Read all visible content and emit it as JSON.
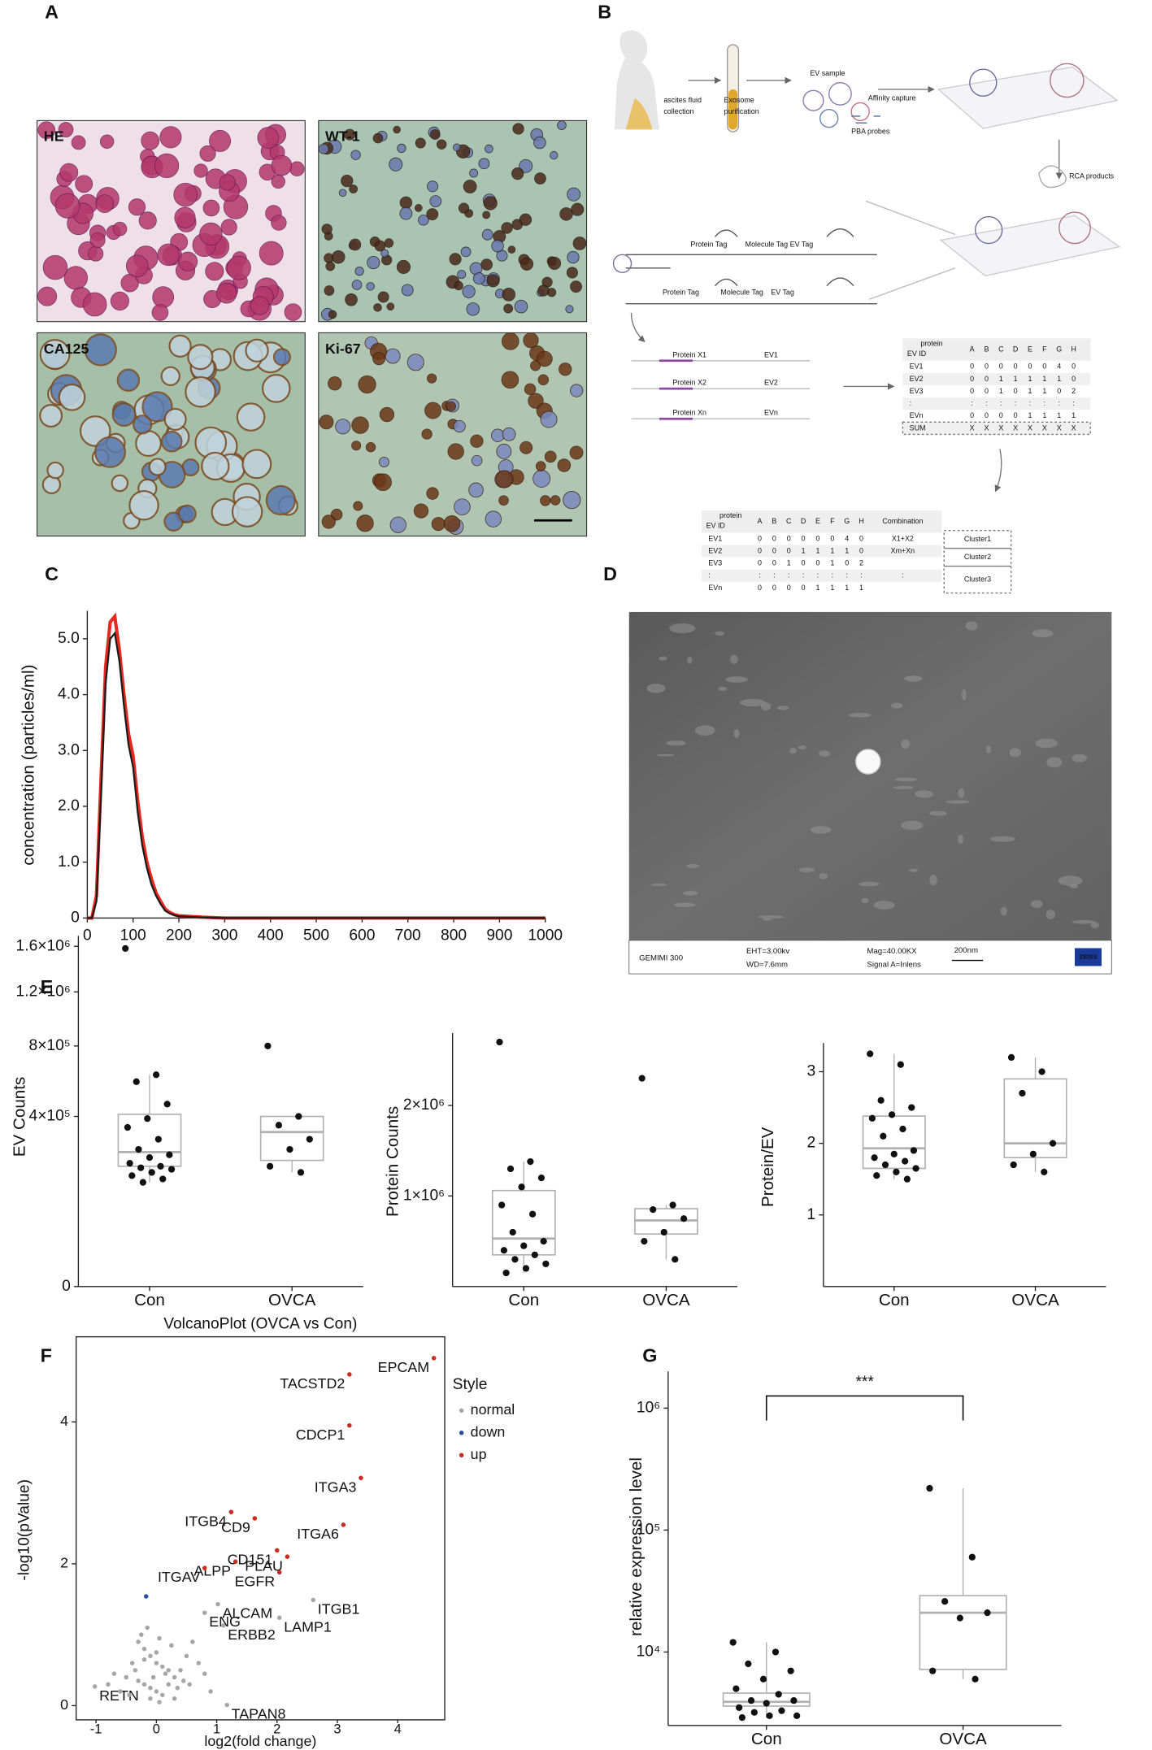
{
  "panel_labels": [
    "A",
    "B",
    "C",
    "D",
    "E",
    "F",
    "G"
  ],
  "panel_a": {
    "images": [
      "HE",
      "WT-1",
      "CA125",
      "Ki-67"
    ]
  },
  "panel_b": {
    "labels": [
      "ascites fluid",
      "collection",
      "Exosome",
      "purification",
      "EV sample",
      "Affinity capture",
      "PBA probes",
      "RCA products",
      "Protein Tag",
      "Molecule Tag",
      "EV Tag",
      "Protein Tag",
      "Molecule Tag",
      "EV Tag",
      "Protein X1",
      "Protein X2",
      "Protein Xn",
      "EV1",
      "EV2",
      "EVn"
    ],
    "table1": {
      "corner_top": "protein",
      "corner_bottom": "EV ID",
      "columns": [
        "A",
        "B",
        "C",
        "D",
        "E",
        "F",
        "G",
        "H"
      ],
      "rows": [
        [
          "EV1",
          "0",
          "0",
          "0",
          "0",
          "0",
          "0",
          "4",
          "0"
        ],
        [
          "EV2",
          "0",
          "0",
          "1",
          "1",
          "1",
          "1",
          "1",
          "0"
        ],
        [
          "EV3",
          "0",
          "0",
          "1",
          "0",
          "1",
          "1",
          "0",
          "2"
        ],
        [
          ":",
          ":",
          ":",
          ":",
          ":",
          ":",
          ":",
          ":",
          ":"
        ],
        [
          "EVn",
          "0",
          "0",
          "0",
          "0",
          "1",
          "1",
          "1",
          "1"
        ],
        [
          "SUM",
          "X",
          "X",
          "X",
          "X",
          "X",
          "X",
          "X",
          "X"
        ]
      ]
    },
    "table2": {
      "corner_top": "protein",
      "corner_bottom": "EV ID",
      "columns": [
        "A",
        "B",
        "C",
        "D",
        "E",
        "F",
        "G",
        "H",
        "Combination"
      ],
      "rows": [
        [
          "EV1",
          "0",
          "0",
          "0",
          "0",
          "0",
          "0",
          "4",
          "0",
          "X1+X2"
        ],
        [
          "EV2",
          "0",
          "0",
          "0",
          "1",
          "1",
          "1",
          "1",
          "0",
          "Xm+Xn"
        ],
        [
          "EV3",
          "0",
          "0",
          "1",
          "0",
          "0",
          "1",
          "0",
          "2"
        ],
        [
          ":",
          ":",
          ":",
          ":",
          ":",
          ":",
          ":",
          ":",
          ":",
          ":"
        ],
        [
          "EVn",
          "0",
          "0",
          "0",
          "0",
          "1",
          "1",
          "1",
          "1"
        ]
      ],
      "clusters": [
        "Cluster1",
        "Cluster2",
        "Cluster3"
      ]
    }
  },
  "panel_d": {
    "footer": [
      "GEMIMI 300",
      "EHT=3.00kv",
      "WD=7.6mm",
      "Mag=40.00KX",
      "Signal A=Inlens",
      "200nm"
    ],
    "logo": "ZEISS"
  },
  "chart_data": [
    {
      "type": "line",
      "ylabel": "concentration (particles/ml)",
      "x": [
        0,
        10,
        20,
        30,
        40,
        50,
        60,
        70,
        80,
        90,
        100,
        110,
        120,
        130,
        140,
        150,
        160,
        170,
        180,
        190,
        200,
        250,
        300,
        350,
        400,
        450,
        500,
        550,
        600,
        650,
        700,
        750,
        800,
        850,
        900,
        950,
        1000
      ],
      "series": [
        {
          "color": "#e8281e",
          "values": [
            0,
            0,
            0.4,
            2.5,
            4.5,
            5.3,
            5.4,
            4.8,
            4.0,
            3.3,
            2.9,
            2.1,
            1.45,
            1.0,
            0.7,
            0.45,
            0.3,
            0.16,
            0.1,
            0.06,
            0.04,
            0.015,
            0,
            0,
            0,
            0,
            0,
            0,
            0,
            0,
            0,
            0,
            0,
            0,
            0,
            0,
            0
          ]
        },
        {
          "color": "#1a1a1a",
          "values": [
            0,
            0,
            0.3,
            2.2,
            4.2,
            5.0,
            5.1,
            4.6,
            3.8,
            3.1,
            2.7,
            1.9,
            1.3,
            0.9,
            0.6,
            0.4,
            0.25,
            0.13,
            0.08,
            0.05,
            0.03,
            0.01,
            0,
            0,
            0,
            0,
            0,
            0,
            0,
            0,
            0,
            0,
            0,
            0,
            0,
            0,
            0
          ]
        }
      ],
      "xlim": [
        0,
        1000
      ],
      "ylim": [
        0,
        5.5
      ],
      "xticks": [
        0,
        100,
        200,
        300,
        400,
        500,
        600,
        700,
        800,
        900,
        1000
      ],
      "yticks": [
        0,
        {
          "value": 1,
          "label": "1.0"
        },
        {
          "value": 2,
          "label": "2.0"
        },
        {
          "value": 3,
          "label": "3.0"
        },
        {
          "value": 4,
          "label": "4.0"
        },
        {
          "value": 5,
          "label": "5.0"
        }
      ]
    },
    {
      "type": "box",
      "ylabel": "EV Counts",
      "categories": [
        "Con",
        "OVCA"
      ],
      "yscale": "sqrt",
      "ylim": [
        0,
        1700000
      ],
      "yticks": [
        0,
        {
          "value": 400000,
          "label": "4×10⁵"
        },
        {
          "value": 800000,
          "label": "8×10⁵"
        },
        {
          "value": 1200000,
          "label": "1.2×10⁶"
        },
        {
          "value": 1600000,
          "label": "1.6×10⁶"
        }
      ],
      "points": [
        [
          1580000,
          620000,
          580000,
          460000,
          390000,
          350000,
          300000,
          260000,
          240000,
          230000,
          210000,
          200000,
          195000,
          190000,
          180000,
          170000,
          160000,
          150000
        ],
        [
          800000,
          400000,
          360000,
          300000,
          260000,
          200000,
          180000
        ]
      ],
      "boxes": [
        {
          "whisker_low": 150000,
          "q1": 200000,
          "median": 250000,
          "q3": 410000,
          "whisker_high": 620000
        },
        {
          "whisker_low": 180000,
          "q1": 220000,
          "median": 330000,
          "q3": 400000,
          "whisker_high": 400000
        }
      ],
      "color": "#111111",
      "box_color": "#b0b0b0"
    },
    {
      "type": "box",
      "ylabel": "Protein Counts",
      "categories": [
        "Con",
        "OVCA"
      ],
      "ylim": [
        0,
        2800000
      ],
      "yticks": [
        {
          "value": 1000000,
          "label": "1×10⁶"
        },
        {
          "value": 2000000,
          "label": "2×10⁶"
        }
      ],
      "points": [
        [
          2700000,
          1380000,
          1300000,
          1200000,
          1100000,
          900000,
          800000,
          600000,
          500000,
          450000,
          400000,
          350000,
          300000,
          250000,
          200000,
          150000
        ],
        [
          2300000,
          900000,
          850000,
          750000,
          600000,
          500000,
          300000
        ]
      ],
      "boxes": [
        {
          "whisker_low": 150000,
          "q1": 350000,
          "median": 530000,
          "q3": 1060000,
          "whisker_high": 1380000
        },
        {
          "whisker_low": 300000,
          "q1": 580000,
          "median": 730000,
          "q3": 860000,
          "whisker_high": 900000
        }
      ],
      "color": "#111111",
      "box_color": "#b0b0b0"
    },
    {
      "type": "box",
      "ylabel": "Protein/EV",
      "categories": [
        "Con",
        "OVCA"
      ],
      "ylim": [
        0,
        3.4
      ],
      "yticks": [
        1,
        2,
        3
      ],
      "points": [
        [
          3.25,
          3.1,
          2.6,
          2.5,
          2.4,
          2.35,
          2.2,
          2.1,
          1.9,
          1.85,
          1.8,
          1.75,
          1.7,
          1.65,
          1.6,
          1.55,
          1.5
        ],
        [
          3.2,
          3.0,
          2.7,
          2.0,
          1.85,
          1.7,
          1.6
        ]
      ],
      "boxes": [
        {
          "whisker_low": 1.5,
          "q1": 1.65,
          "median": 1.93,
          "q3": 2.38,
          "whisker_high": 3.25
        },
        {
          "whisker_low": 1.6,
          "q1": 1.8,
          "median": 2.0,
          "q3": 2.9,
          "whisker_high": 3.2
        }
      ],
      "color": "#111111",
      "box_color": "#b0b0b0"
    },
    {
      "type": "scatter",
      "title": "VolcanoPlot (OVCA vs Con)",
      "xlabel": "log2(fold change)",
      "ylabel": "-log10(pValue)",
      "legend_title": "Style",
      "legend": "right",
      "xlim": [
        -1.33,
        4.78
      ],
      "ylim": [
        -0.2,
        5.2
      ],
      "xticks": [
        -1,
        0,
        1,
        2,
        3,
        4
      ],
      "yticks": [
        0,
        2,
        4
      ],
      "series": [
        {
          "name": "normal",
          "color": "#a6a6a6",
          "x": [
            1.02,
            2.6,
            0.8,
            1.11,
            2.04,
            1.17,
            -1.02,
            -0.3,
            -0.2,
            -0.1,
            0,
            0.1,
            0.2,
            -0.4,
            -0.5,
            -0.3,
            -0.2,
            -0.1,
            0,
            0.1,
            0.2,
            0.3,
            0.4,
            0.5,
            0.6,
            -0.6,
            -0.25,
            -0.15,
            0.05,
            0.25,
            -0.35,
            0.15,
            -0.05,
            0.35,
            -0.45,
            -0.1,
            0.05,
            0.3,
            0.45,
            -0.2,
            0,
            0.55,
            -0.7,
            0.7,
            0.8,
            -0.8,
            0.9
          ],
          "values": [
            1.43,
            1.49,
            1.31,
            1.13,
            1.24,
            0.01,
            0.27,
            0.9,
            0.8,
            0.7,
            0.6,
            0.55,
            0.5,
            0.6,
            0.4,
            0.35,
            0.3,
            0.25,
            0.2,
            0.15,
            0.3,
            0.4,
            0.5,
            0.7,
            0.9,
            0.2,
            1.0,
            1.1,
            0.95,
            0.85,
            0.5,
            0.45,
            0.4,
            0.25,
            0.15,
            0.1,
            0.05,
            0.1,
            0.35,
            0.65,
            0.75,
            0.3,
            0.45,
            0.6,
            0.45,
            0.3,
            0.2
          ],
          "labels": [
            "ALCAM",
            "ITGB1",
            "ENG",
            "ERBB2",
            "LAMP1",
            "TAPAN8",
            "RETN",
            null,
            null,
            null,
            null,
            null,
            null,
            null,
            null,
            null,
            null,
            null,
            null,
            null,
            null,
            null,
            null,
            null,
            null,
            null,
            null,
            null,
            null,
            null,
            null,
            null,
            null,
            null,
            null,
            null,
            null,
            null,
            null,
            null,
            null,
            null,
            null,
            null,
            null,
            null,
            null
          ]
        },
        {
          "name": "down",
          "color": "#2b4fa0",
          "x": [
            -0.17
          ],
          "values": [
            1.54
          ]
        },
        {
          "name": "up",
          "color": "#cc2a1f",
          "x": [
            4.6,
            3.2,
            3.2,
            3.39,
            3.1,
            1.24,
            1.63,
            2.0,
            2.17,
            2.04,
            1.31,
            0.8
          ],
          "values": [
            4.9,
            4.67,
            3.95,
            3.21,
            2.55,
            2.73,
            2.64,
            2.19,
            2.1,
            1.88,
            2.03,
            1.94
          ],
          "labels": [
            "EPCAM",
            "TACSTD2",
            "CDCP1",
            "ITGA3",
            "ITGA6",
            "ITGB4",
            "CD9",
            "CD151",
            "PLAU",
            "EGFR",
            "ALPP",
            "ITGAV"
          ]
        }
      ]
    },
    {
      "type": "box",
      "ylabel": "relative expression level",
      "categories": [
        "Con",
        "OVCA"
      ],
      "yscale": "log",
      "ylim": [
        2500,
        2000000
      ],
      "yticks": [
        {
          "value": 10000,
          "label": "10⁴"
        },
        {
          "value": 100000,
          "label": "10⁵"
        },
        {
          "value": 1000000,
          "label": "10⁶"
        }
      ],
      "points": [
        [
          12000,
          10000,
          8000,
          7000,
          6000,
          5000,
          4500,
          4000,
          4000,
          3800,
          3500,
          3300,
          3200,
          3000,
          3000,
          2900
        ],
        [
          220000,
          60000,
          26000,
          21000,
          19000,
          7000,
          6000
        ]
      ],
      "boxes": [
        {
          "whisker_low": 2900,
          "q1": 3600,
          "median": 3900,
          "q3": 4600,
          "whisker_high": 12000
        },
        {
          "whisker_low": 6000,
          "q1": 7200,
          "median": 21000,
          "q3": 29000,
          "whisker_high": 220000
        }
      ],
      "annotation": "***",
      "color": "#111111",
      "box_color": "#b0b0b0"
    }
  ]
}
